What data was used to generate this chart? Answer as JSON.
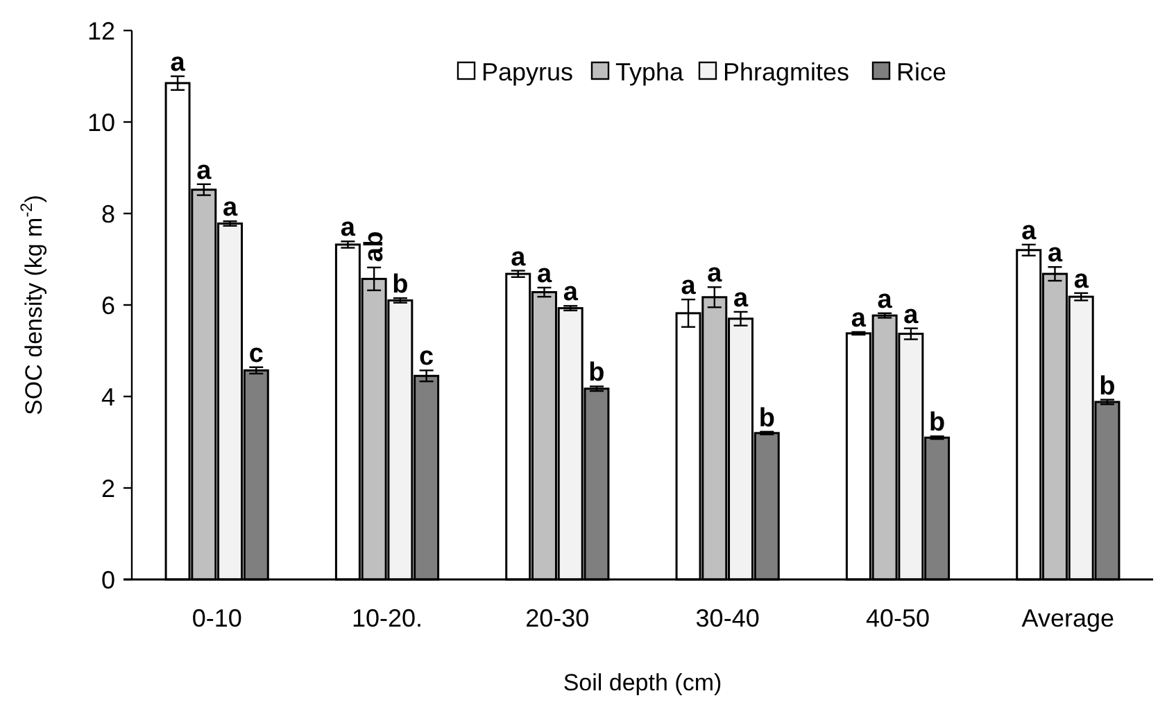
{
  "chart_data": {
    "type": "bar",
    "xlabel": "Soil depth (cm)",
    "ylabel": "SOC density (kg m$^{-2}$)",
    "categories": [
      "0-10",
      "10-20.",
      "20-30",
      "30-40",
      "40-50",
      "Average"
    ],
    "ylim": [
      0,
      12
    ],
    "yticks": [
      0,
      2,
      4,
      6,
      8,
      10,
      12
    ],
    "grid": false,
    "legend": "top",
    "series": [
      {
        "name": "Papyrus",
        "color": "#ffffff",
        "values": [
          10.85,
          7.32,
          6.68,
          5.82,
          5.38,
          7.2
        ],
        "errors": [
          0.15,
          0.07,
          0.07,
          0.3,
          0.03,
          0.12
        ],
        "value_labels": [
          "a",
          "a",
          "a",
          "a",
          "a",
          "a"
        ]
      },
      {
        "name": "Typha",
        "color": "#bfbfbf",
        "values": [
          8.52,
          6.57,
          6.28,
          6.17,
          5.77,
          6.68
        ],
        "errors": [
          0.12,
          0.25,
          0.1,
          0.22,
          0.05,
          0.15
        ],
        "value_labels": [
          "a",
          "ab",
          "a",
          "a",
          "a",
          "a"
        ]
      },
      {
        "name": "Phragmites",
        "color": "#f2f2f2",
        "values": [
          7.78,
          6.1,
          5.93,
          5.7,
          5.37,
          6.18
        ],
        "errors": [
          0.05,
          0.05,
          0.05,
          0.15,
          0.12,
          0.08
        ],
        "value_labels": [
          "a",
          "b",
          "a",
          "a",
          "a",
          "a"
        ]
      },
      {
        "name": "Rice",
        "color": "#7f7f7f",
        "values": [
          4.57,
          4.45,
          4.17,
          3.2,
          3.1,
          3.88
        ],
        "errors": [
          0.07,
          0.12,
          0.05,
          0.03,
          0.03,
          0.05
        ],
        "value_labels": [
          "c",
          "c",
          "b",
          "b",
          "b",
          "b"
        ]
      }
    ]
  }
}
